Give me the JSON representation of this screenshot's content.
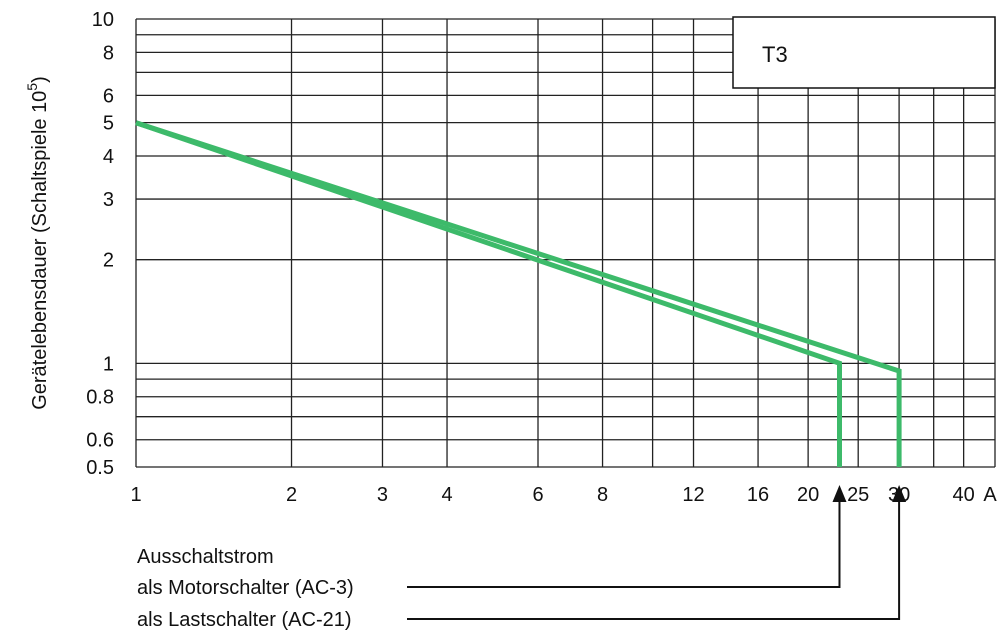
{
  "chart_data": {
    "type": "line",
    "x_scale": "log",
    "y_scale": "log",
    "xlim": [
      1,
      46
    ],
    "ylim": [
      0.5,
      10
    ],
    "grid": true,
    "x_gridlines": [
      1,
      2,
      3,
      4,
      6,
      8,
      10,
      12,
      16,
      20,
      25,
      30,
      35,
      40,
      46
    ],
    "y_gridlines": [
      0.5,
      0.6,
      0.7,
      0.8,
      0.9,
      1,
      2,
      3,
      4,
      5,
      6,
      7,
      8,
      9,
      10
    ],
    "x_ticks": [
      {
        "value": 1,
        "label": "1"
      },
      {
        "value": 2,
        "label": "2"
      },
      {
        "value": 3,
        "label": "3"
      },
      {
        "value": 4,
        "label": "4"
      },
      {
        "value": 6,
        "label": "6"
      },
      {
        "value": 8,
        "label": "8"
      },
      {
        "value": 12,
        "label": "12"
      },
      {
        "value": 16,
        "label": "16"
      },
      {
        "value": 20,
        "label": "20"
      },
      {
        "value": 25,
        "label": "25"
      },
      {
        "value": 30,
        "label": "30"
      },
      {
        "value": 40,
        "label": "40"
      }
    ],
    "x_unit": "A",
    "y_ticks": [
      {
        "value": 10,
        "label": "10"
      },
      {
        "value": 8,
        "label": "8"
      },
      {
        "value": 6,
        "label": "6"
      },
      {
        "value": 5,
        "label": "5"
      },
      {
        "value": 4,
        "label": "4"
      },
      {
        "value": 3,
        "label": "3"
      },
      {
        "value": 2,
        "label": "2"
      },
      {
        "value": 1,
        "label": "1"
      },
      {
        "value": 0.8,
        "label": "0.8"
      },
      {
        "value": 0.6,
        "label": "0.6"
      },
      {
        "value": 0.5,
        "label": "0.5"
      }
    ],
    "ylabel": "Gerätelebensdauer (Schaltspiele 10",
    "ylabel_sup": "5",
    "ylabel_end": ")",
    "box_label": "T3",
    "series": [
      {
        "name": "als Motorschalter (AC-3)",
        "points": [
          [
            1,
            5.0
          ],
          [
            23,
            1.0
          ],
          [
            23,
            0.5
          ]
        ]
      },
      {
        "name": "als Lastschalter (AC-21)",
        "points": [
          [
            1,
            5.0
          ],
          [
            30,
            0.95
          ],
          [
            30,
            0.5
          ]
        ]
      }
    ],
    "line_color": "#3dba6a",
    "annotations": {
      "title": "Ausschaltstrom",
      "ac3": {
        "text": "als Motorschalter (AC-3)",
        "x_value": 23
      },
      "ac21": {
        "text": "als Lastschalter (AC-21)",
        "x_value": 30
      }
    }
  }
}
